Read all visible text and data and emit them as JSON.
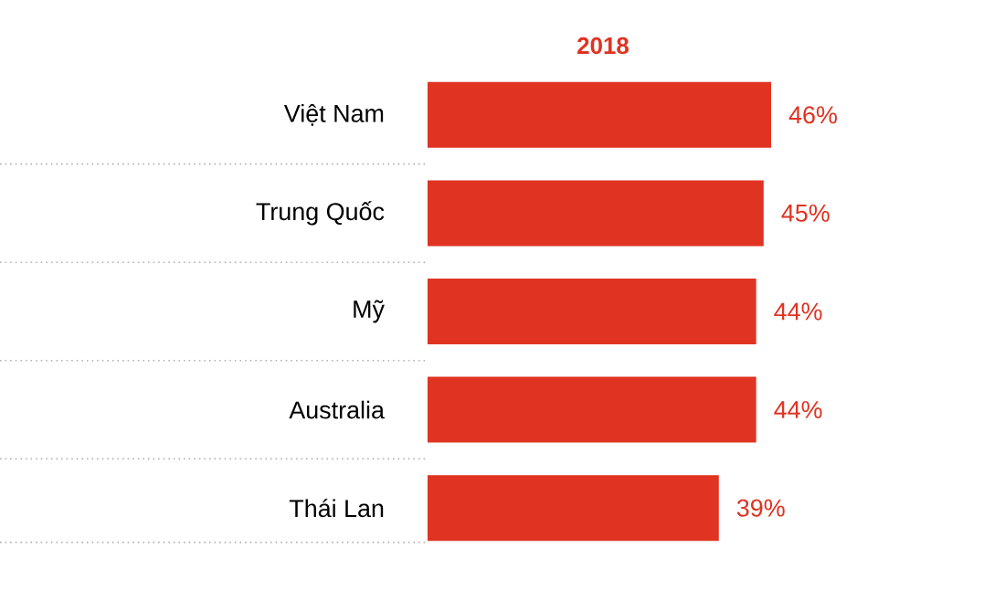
{
  "chart_data": {
    "type": "bar",
    "orientation": "horizontal",
    "title": "2018",
    "categories": [
      "Việt Nam",
      "Trung Quốc",
      "Mỹ",
      "Australia",
      "Thái Lan"
    ],
    "values": [
      46,
      45,
      44,
      44,
      39
    ],
    "value_labels": [
      "46%",
      "45%",
      "44%",
      "44%",
      "39%"
    ],
    "color": "#e03322"
  }
}
